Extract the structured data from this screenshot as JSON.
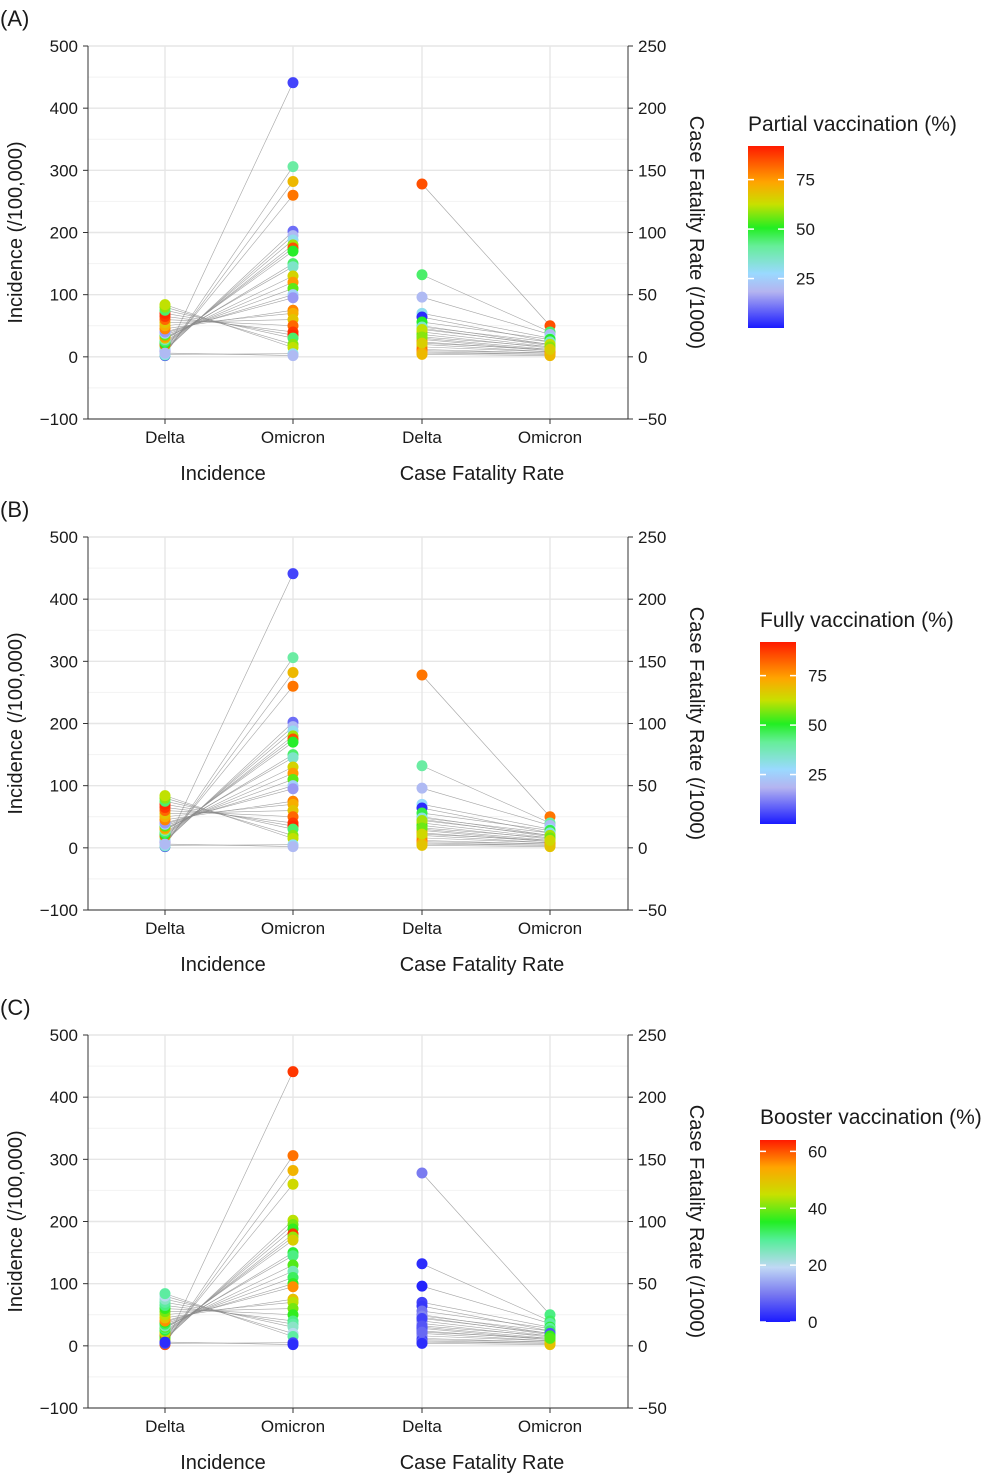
{
  "chart_data": [
    {
      "type": "line",
      "panel_label": "(A)",
      "categories": [
        "Delta",
        "Omicron",
        "Delta",
        "Omicron"
      ],
      "groups": [
        "Incidence",
        "Case Fatality Rate"
      ],
      "ylabel_left": "Incidence (/100,000)",
      "ylabel_right": "Case Fatality Rate (/1000)",
      "ylim_left": [
        -100,
        500
      ],
      "ylim_right": [
        -50,
        250
      ],
      "yticks_left": [
        "500",
        "400",
        "300",
        "200",
        "100",
        "0",
        "−100"
      ],
      "yticks_right": [
        "250",
        "200",
        "150",
        "100",
        "50",
        "0",
        "−50"
      ],
      "grid": true,
      "legend": {
        "title": "Partial vaccination (%)",
        "position": "right",
        "min": 0,
        "max": 92,
        "ticks": [
          25,
          50,
          75
        ]
      },
      "incidence": {
        "delta": [
          2,
          3,
          5,
          8,
          10,
          12,
          15,
          18,
          20,
          22,
          25,
          28,
          30,
          32,
          35,
          38,
          40,
          45,
          50,
          55,
          60,
          65,
          70,
          75,
          80,
          84,
          4,
          6
        ],
        "omicron": [
          441,
          306,
          282,
          260,
          202,
          195,
          188,
          180,
          175,
          170,
          150,
          145,
          130,
          120,
          110,
          100,
          95,
          75,
          70,
          60,
          50,
          40,
          35,
          30,
          20,
          15,
          5,
          2
        ],
        "color": [
          5,
          40,
          70,
          80,
          10,
          20,
          30,
          60,
          85,
          50,
          45,
          35,
          65,
          75,
          55,
          25,
          15,
          78,
          72,
          68,
          82,
          88,
          90,
          45,
          58,
          62,
          30,
          20
        ]
      },
      "cfr": {
        "delta": [
          139,
          66,
          48,
          35,
          32,
          25,
          23,
          20,
          18,
          15,
          14,
          12,
          10,
          8,
          6,
          5,
          4,
          3,
          2,
          28,
          24,
          22,
          16,
          11
        ],
        "omicron": [
          25,
          20,
          18,
          15,
          12,
          10,
          9,
          8,
          7,
          6,
          5,
          5,
          4,
          4,
          3,
          3,
          2,
          2,
          1,
          14,
          12,
          10,
          8,
          6
        ],
        "color": [
          85,
          45,
          20,
          30,
          2,
          40,
          60,
          70,
          55,
          75,
          65,
          80,
          72,
          68,
          78,
          82,
          76,
          74,
          70,
          50,
          35,
          62,
          58,
          66
        ]
      }
    },
    {
      "type": "line",
      "panel_label": "(B)",
      "categories": [
        "Delta",
        "Omicron",
        "Delta",
        "Omicron"
      ],
      "groups": [
        "Incidence",
        "Case Fatality Rate"
      ],
      "ylabel_left": "Incidence (/100,000)",
      "ylabel_right": "Case Fatality Rate (/1000)",
      "ylim_left": [
        -100,
        500
      ],
      "ylim_right": [
        -50,
        250
      ],
      "yticks_left": [
        "500",
        "400",
        "300",
        "200",
        "100",
        "0",
        "−100"
      ],
      "yticks_right": [
        "250",
        "200",
        "150",
        "100",
        "50",
        "0",
        "−50"
      ],
      "grid": true,
      "legend": {
        "title": "Fully vaccination (%)",
        "position": "right",
        "min": 0,
        "max": 92,
        "ticks": [
          25,
          50,
          75
        ]
      },
      "incidence": {
        "delta": [
          2,
          3,
          5,
          8,
          10,
          12,
          15,
          18,
          20,
          22,
          25,
          28,
          30,
          32,
          35,
          38,
          40,
          45,
          50,
          55,
          60,
          65,
          70,
          75,
          80,
          84,
          4,
          6
        ],
        "omicron": [
          441,
          306,
          282,
          260,
          202,
          195,
          188,
          180,
          175,
          170,
          150,
          145,
          130,
          120,
          110,
          100,
          95,
          75,
          70,
          60,
          50,
          40,
          35,
          30,
          20,
          15,
          5,
          2
        ],
        "color": [
          5,
          40,
          70,
          80,
          10,
          20,
          30,
          60,
          85,
          50,
          45,
          35,
          65,
          75,
          55,
          25,
          15,
          78,
          72,
          68,
          82,
          88,
          90,
          45,
          58,
          62,
          30,
          20
        ]
      },
      "cfr": {
        "delta": [
          139,
          66,
          48,
          35,
          32,
          25,
          23,
          20,
          18,
          15,
          14,
          12,
          10,
          8,
          6,
          5,
          4,
          3,
          2,
          28,
          24,
          22,
          16,
          11
        ],
        "omicron": [
          25,
          20,
          18,
          15,
          12,
          10,
          9,
          8,
          7,
          6,
          5,
          5,
          4,
          4,
          3,
          3,
          2,
          2,
          1,
          14,
          12,
          10,
          8,
          6
        ],
        "color": [
          80,
          40,
          20,
          28,
          2,
          38,
          58,
          68,
          52,
          72,
          62,
          78,
          70,
          66,
          76,
          80,
          74,
          72,
          68,
          48,
          32,
          60,
          56,
          64
        ]
      }
    },
    {
      "type": "line",
      "panel_label": "(C)",
      "categories": [
        "Delta",
        "Omicron",
        "Delta",
        "Omicron"
      ],
      "groups": [
        "Incidence",
        "Case Fatality Rate"
      ],
      "ylabel_left": "Incidence (/100,000)",
      "ylabel_right": "Case Fatality Rate (/1000)",
      "ylim_left": [
        -100,
        500
      ],
      "ylim_right": [
        -50,
        250
      ],
      "yticks_left": [
        "500",
        "400",
        "300",
        "200",
        "100",
        "0",
        "−100"
      ],
      "yticks_right": [
        "250",
        "200",
        "150",
        "100",
        "50",
        "0",
        "−50"
      ],
      "grid": true,
      "legend": {
        "title": "Booster vaccination (%)",
        "position": "right",
        "min": 0,
        "max": 64,
        "ticks": [
          0,
          20,
          40,
          60
        ]
      },
      "incidence": {
        "delta": [
          2,
          3,
          5,
          8,
          10,
          12,
          15,
          18,
          20,
          22,
          25,
          28,
          30,
          32,
          35,
          38,
          40,
          45,
          50,
          55,
          60,
          65,
          70,
          75,
          80,
          84,
          4,
          6
        ],
        "omicron": [
          441,
          306,
          282,
          260,
          202,
          195,
          188,
          180,
          175,
          170,
          150,
          145,
          130,
          120,
          110,
          100,
          95,
          75,
          70,
          60,
          50,
          40,
          35,
          30,
          20,
          15,
          5,
          2
        ],
        "color": [
          62,
          58,
          52,
          46,
          44,
          40,
          36,
          62,
          42,
          48,
          34,
          30,
          38,
          26,
          32,
          36,
          56,
          50,
          44,
          40,
          36,
          30,
          28,
          24,
          20,
          28,
          4,
          2
        ]
      },
      "cfr": {
        "delta": [
          139,
          66,
          48,
          35,
          32,
          25,
          23,
          20,
          18,
          15,
          14,
          12,
          10,
          8,
          6,
          5,
          4,
          3,
          2,
          28,
          24,
          22,
          16,
          11
        ],
        "omicron": [
          25,
          20,
          18,
          15,
          12,
          10,
          9,
          8,
          7,
          6,
          5,
          5,
          4,
          4,
          3,
          3,
          2,
          2,
          1,
          14,
          12,
          10,
          8,
          6
        ],
        "color": [
          10,
          2,
          1,
          4,
          3,
          6,
          8,
          10,
          12,
          2,
          4,
          6,
          8,
          10,
          12,
          3,
          5,
          7,
          2,
          9,
          11,
          4,
          6,
          8
        ],
        "color_omicron": [
          30,
          32,
          28,
          34,
          8,
          30,
          26,
          24,
          40,
          36,
          38,
          44,
          42,
          46,
          48,
          40,
          44,
          46,
          50,
          28,
          32,
          6,
          36,
          38
        ]
      }
    }
  ]
}
